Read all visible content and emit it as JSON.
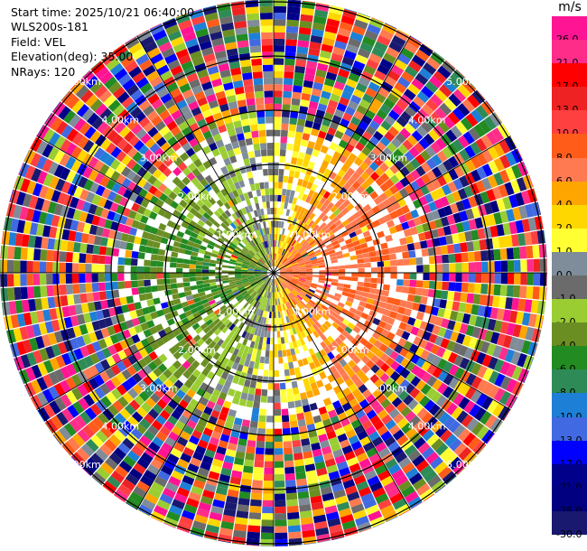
{
  "header": {
    "start_time": "Start time: 2025/10/21 06:40:00",
    "site": "WLS200s-181",
    "field": "Field: VEL",
    "elevation": "Elevation(deg): 35.00",
    "nrays": "NRays: 120"
  },
  "colorbar": {
    "unit": "m/s",
    "levels": [
      "26.0",
      "21.0",
      "17.0",
      "13.0",
      "10.0",
      "8.0",
      "6.0",
      "4.0",
      "2.0",
      "1.0",
      "0.0",
      "-1.0",
      "-2.0",
      "-4.0",
      "-6.0",
      "-8.0",
      "-10.0",
      "-13.0",
      "-17.0",
      "-21.0",
      "-26.0",
      "-30.0"
    ],
    "colors": [
      "#ff1493",
      "#ff2d8a",
      "#ff0000",
      "#ee2222",
      "#ff4040",
      "#ff5c1a",
      "#ff7a50",
      "#ffa500",
      "#ffd700",
      "#ffff33",
      "#7f8c99",
      "#6b6b6b",
      "#9acd32",
      "#6b8e23",
      "#228b22",
      "#2e8b57",
      "#1e7fd6",
      "#4169e1",
      "#0000ff",
      "#00008b",
      "#000080",
      "#191970"
    ]
  },
  "range_labels": [
    "1.00km",
    "2.00km",
    "3.00km",
    "4.00km",
    "5.00km"
  ],
  "chart_data": {
    "type": "heatmap",
    "subtype": "polar PPI radial velocity",
    "field": "VEL",
    "unit": "m/s",
    "elevation_deg": 35.0,
    "n_rays": 120,
    "range_rings_km": [
      1,
      2,
      3,
      4,
      5
    ],
    "max_range_km": 5.05,
    "value_range": [
      -30.0,
      26.0
    ],
    "pattern": {
      "near_field_east": "positive velocities 2 to 10 m/s (yellow/orange)",
      "near_field_west": "negative velocities -2 to -10 m/s (green/blue)",
      "beyond_3km": "noise spanning full scale"
    }
  }
}
